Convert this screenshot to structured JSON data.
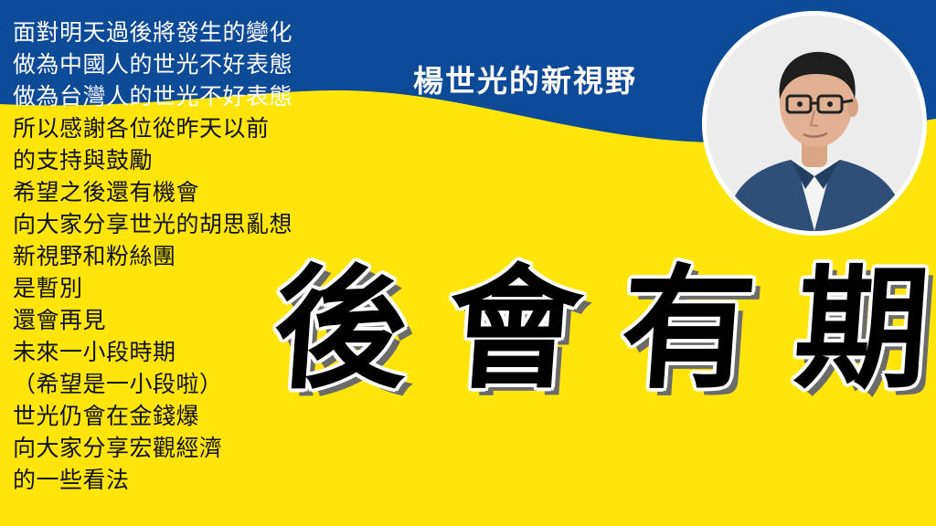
{
  "header": {
    "title": "楊世光的新視野"
  },
  "body_lines": [
    "面對明天過後將發生的變化",
    "做為中國人的世光不好表態",
    "做為台灣人的世光不好表態",
    "所以感謝各位從昨天以前",
    "的支持與鼓勵",
    "希望之後還有機會",
    "向大家分享世光的胡思亂想",
    "新視野和粉絲團",
    "是暫別",
    "還會再見",
    "未來一小段時期",
    "（希望是一小段啦）",
    "世光仍會在金錢爆",
    "向大家分享宏觀經濟",
    "的一些看法"
  ],
  "farewell": [
    "後",
    "會",
    "有",
    "期"
  ],
  "colors": {
    "background_yellow": "#ffe50a",
    "header_blue": "#0d4a98",
    "text_white": "#ffffff",
    "text_black": "#111111"
  }
}
